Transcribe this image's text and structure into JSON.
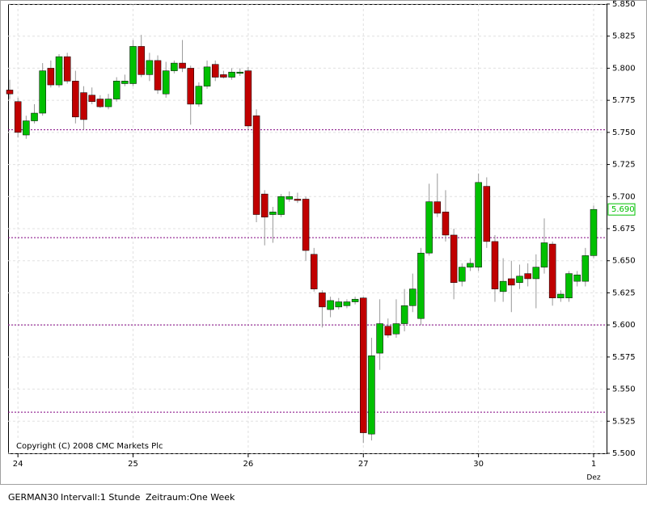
{
  "chart_data": {
    "type": "candlestick",
    "instrument": "GERMAN30",
    "interval": "Intervall:1 Stunde",
    "period": "Zeitraum:One Week",
    "copyright": "Copyright (C) 2008 CMC Markets Plc",
    "categories": [
      null,
      "24",
      null,
      null,
      null,
      null,
      null,
      null,
      null,
      null,
      null,
      null,
      null,
      null,
      null,
      "25",
      null,
      null,
      null,
      null,
      null,
      null,
      null,
      null,
      null,
      null,
      null,
      null,
      null,
      "26",
      null,
      null,
      null,
      null,
      null,
      null,
      null,
      null,
      null,
      null,
      null,
      null,
      null,
      "27",
      null,
      null,
      null,
      null,
      null,
      null,
      null,
      null,
      null,
      null,
      null,
      null,
      null,
      "30",
      null,
      null,
      null,
      null,
      null,
      null,
      null,
      null,
      null,
      null,
      null,
      null,
      null,
      "1"
    ],
    "month_label": "Dez",
    "open": [
      5.783,
      5.774,
      5.748,
      5.759,
      5.765,
      5.8,
      5.787,
      5.809,
      5.79,
      5.781,
      5.779,
      5.776,
      5.77,
      5.776,
      5.788,
      5.788,
      5.817,
      5.795,
      5.806,
      5.78,
      5.798,
      5.804,
      5.8,
      5.772,
      5.786,
      5.803,
      5.795,
      5.793,
      5.796,
      5.798,
      5.763,
      5.702,
      5.686,
      5.686,
      5.698,
      5.698,
      5.698,
      5.655,
      5.625,
      5.612,
      5.614,
      5.615,
      5.618,
      5.621,
      5.515,
      5.578,
      5.599,
      5.593,
      5.601,
      5.615,
      5.605,
      5.656,
      5.696,
      5.688,
      5.67,
      5.634,
      5.645,
      5.645,
      5.708,
      5.665,
      5.626,
      5.636,
      5.633,
      5.64,
      5.636,
      5.645,
      5.663,
      5.621,
      5.621,
      5.634,
      5.634,
      5.654
    ],
    "high": [
      5.791,
      5.777,
      5.763,
      5.772,
      5.804,
      5.806,
      5.811,
      5.812,
      5.798,
      5.786,
      5.785,
      5.779,
      5.78,
      5.793,
      5.795,
      5.822,
      5.826,
      5.812,
      5.81,
      5.805,
      5.806,
      5.822,
      5.802,
      5.789,
      5.806,
      5.806,
      5.798,
      5.8,
      5.8,
      5.801,
      5.768,
      5.705,
      5.692,
      5.702,
      5.704,
      5.703,
      5.7,
      5.66,
      5.627,
      5.622,
      5.621,
      5.62,
      5.622,
      5.622,
      5.59,
      5.62,
      5.605,
      5.62,
      5.628,
      5.64,
      5.66,
      5.71,
      5.718,
      5.705,
      5.675,
      5.648,
      5.652,
      5.718,
      5.715,
      5.67,
      5.652,
      5.65,
      5.647,
      5.648,
      5.655,
      5.683,
      5.665,
      5.627,
      5.642,
      5.642,
      5.66,
      5.693
    ],
    "low": [
      5.776,
      5.746,
      5.745,
      5.757,
      5.763,
      5.785,
      5.785,
      5.788,
      5.757,
      5.752,
      5.772,
      5.769,
      5.768,
      5.774,
      5.786,
      5.786,
      5.793,
      5.79,
      5.78,
      5.777,
      5.796,
      5.797,
      5.756,
      5.77,
      5.784,
      5.79,
      5.792,
      5.791,
      5.794,
      5.752,
      5.68,
      5.662,
      5.664,
      5.684,
      5.696,
      5.695,
      5.65,
      5.626,
      5.598,
      5.606,
      5.612,
      5.613,
      5.616,
      5.508,
      5.51,
      5.565,
      5.59,
      5.59,
      5.595,
      5.61,
      5.6,
      5.654,
      5.684,
      5.665,
      5.62,
      5.63,
      5.642,
      5.642,
      5.66,
      5.618,
      5.618,
      5.61,
      5.628,
      5.63,
      5.613,
      5.64,
      5.615,
      5.618,
      5.618,
      5.63,
      5.63,
      5.652
    ],
    "close": [
      5.78,
      5.75,
      5.759,
      5.765,
      5.798,
      5.787,
      5.809,
      5.79,
      5.762,
      5.76,
      5.774,
      5.77,
      5.776,
      5.79,
      5.79,
      5.817,
      5.795,
      5.806,
      5.783,
      5.798,
      5.804,
      5.8,
      5.772,
      5.786,
      5.801,
      5.793,
      5.793,
      5.797,
      5.797,
      5.755,
      5.686,
      5.684,
      5.688,
      5.7,
      5.7,
      5.697,
      5.658,
      5.628,
      5.614,
      5.619,
      5.618,
      5.618,
      5.62,
      5.516,
      5.576,
      5.601,
      5.592,
      5.601,
      5.615,
      5.628,
      5.656,
      5.696,
      5.687,
      5.67,
      5.633,
      5.645,
      5.648,
      5.711,
      5.665,
      5.628,
      5.634,
      5.631,
      5.638,
      5.636,
      5.645,
      5.664,
      5.621,
      5.624,
      5.64,
      5.639,
      5.654,
      5.69
    ],
    "up_color": "#00c000",
    "down_color": "#c00000",
    "last_price": {
      "value": 5.69,
      "label": "5.690"
    },
    "levels": [
      5.752,
      5.668,
      5.6,
      5.532
    ],
    "level_color": "#800080",
    "ylim": [
      5.5,
      5.85
    ],
    "yticks": [
      {
        "value": 5.5,
        "label": "5.500"
      },
      {
        "value": 5.525,
        "label": "5.525"
      },
      {
        "value": 5.55,
        "label": "5.550"
      },
      {
        "value": 5.575,
        "label": "5.575"
      },
      {
        "value": 5.6,
        "label": "5.600"
      },
      {
        "value": 5.625,
        "label": "5.625"
      },
      {
        "value": 5.65,
        "label": "5.650"
      },
      {
        "value": 5.675,
        "label": "5.675"
      },
      {
        "value": 5.7,
        "label": "5.700"
      },
      {
        "value": 5.725,
        "label": "5.725"
      },
      {
        "value": 5.75,
        "label": "5.750"
      },
      {
        "value": 5.775,
        "label": "5.775"
      },
      {
        "value": 5.8,
        "label": "5.800"
      },
      {
        "value": 5.825,
        "label": "5.825"
      },
      {
        "value": 5.85,
        "label": "5.850"
      }
    ],
    "grid": true
  }
}
